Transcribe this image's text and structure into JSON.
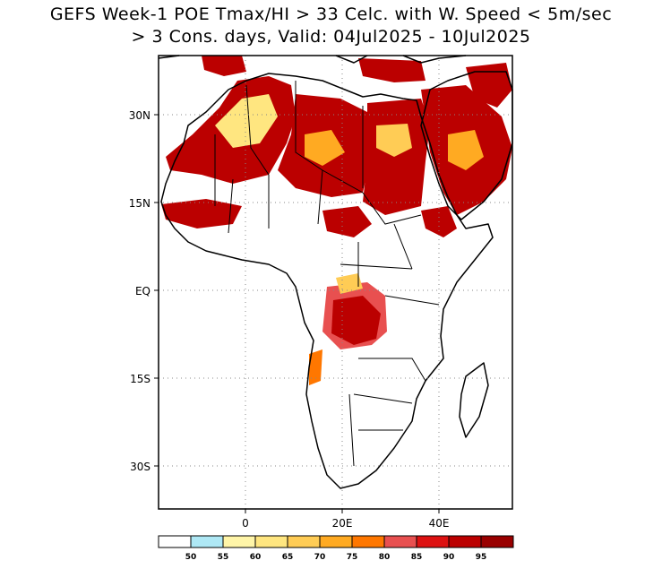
{
  "title": {
    "line1": "GEFS Week-1 POE Tmax/HI > 33 Celc. with W. Speed < 5m/sec",
    "line2": "> 3 Cons. days, Valid: 04Jul2025 - 10Jul2025"
  },
  "map": {
    "lon_range": [
      -18,
      55
    ],
    "lat_range": [
      -40,
      40
    ],
    "lat_ticks": [
      {
        "value": 30,
        "label": "30N"
      },
      {
        "value": 15,
        "label": "15N"
      },
      {
        "value": 0,
        "label": "EQ"
      },
      {
        "value": -15,
        "label": "15S"
      },
      {
        "value": -30,
        "label": "30S"
      }
    ],
    "lon_ticks": [
      {
        "value": 0,
        "label": "0"
      },
      {
        "value": 20,
        "label": "20E"
      },
      {
        "value": 40,
        "label": "40E"
      }
    ],
    "grid": "dotted at 10 degree intervals"
  },
  "colorbar": {
    "labels": [
      "50",
      "55",
      "60",
      "65",
      "70",
      "75",
      "80",
      "85",
      "90",
      "95"
    ],
    "colors": [
      "#ffffff",
      "#aee8f5",
      "#fff5a8",
      "#ffe680",
      "#ffcc55",
      "#ffaa22",
      "#ff7700",
      "#e85050",
      "#dd1111",
      "#bb0000",
      "#990000"
    ]
  },
  "shading_colors": {
    "low": "#ffe680",
    "mid": "#ffaa22",
    "high": "#e85050",
    "very_high": "#bb0000",
    "max": "#990000",
    "cyan": "#aee8f5"
  }
}
